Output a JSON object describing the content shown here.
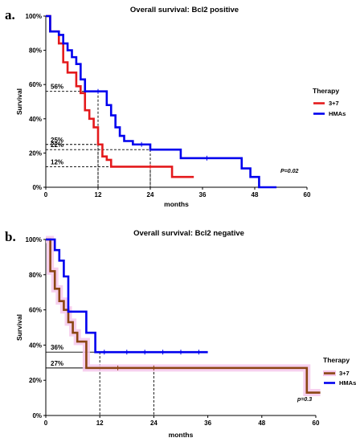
{
  "figure": {
    "panels": [
      {
        "letter": "a."
      },
      {
        "letter": "b."
      }
    ]
  },
  "chart_data": [
    {
      "type": "line",
      "title": "Overall survival: Bcl2 positive",
      "xlabel": "months",
      "ylabel": "Survival",
      "xlim": [
        0,
        60
      ],
      "ylim": [
        0,
        100
      ],
      "x_ticks": [
        "0",
        "12",
        "24",
        "36",
        "48",
        "60"
      ],
      "y_ticks": [
        "0%",
        "20%",
        "40%",
        "60%",
        "80%",
        "100%"
      ],
      "legend": {
        "title": "Therapy",
        "position": "right"
      },
      "series": [
        {
          "name": "3+7",
          "color": "#e41a1c",
          "steps": [
            [
              0,
              100
            ],
            [
              1,
              91
            ],
            [
              3,
              84
            ],
            [
              4,
              73
            ],
            [
              5,
              67
            ],
            [
              7,
              59
            ],
            [
              8,
              55
            ],
            [
              9,
              45
            ],
            [
              10,
              40
            ],
            [
              11,
              35
            ],
            [
              12,
              25
            ],
            [
              13,
              18
            ],
            [
              14,
              16
            ],
            [
              15,
              12
            ],
            [
              24,
              12
            ],
            [
              25,
              12
            ],
            [
              29,
              6
            ],
            [
              34,
              6
            ]
          ],
          "censors": [
            [
              24,
              12
            ]
          ]
        },
        {
          "name": "HMAs",
          "color": "#0000ee",
          "steps": [
            [
              0,
              100
            ],
            [
              1,
              91
            ],
            [
              3,
              89
            ],
            [
              4,
              84
            ],
            [
              5,
              80
            ],
            [
              6,
              76
            ],
            [
              7,
              72
            ],
            [
              8,
              63
            ],
            [
              9,
              56
            ],
            [
              12,
              56
            ],
            [
              14,
              48
            ],
            [
              15,
              42
            ],
            [
              16,
              35
            ],
            [
              17,
              30
            ],
            [
              18,
              27
            ],
            [
              20,
              25
            ],
            [
              24,
              22
            ],
            [
              28,
              22
            ],
            [
              31,
              17
            ],
            [
              37,
              17
            ],
            [
              45,
              11
            ],
            [
              47,
              6
            ],
            [
              49,
              0
            ],
            [
              53,
              0
            ]
          ],
          "censors": [
            [
              12,
              56
            ],
            [
              22,
              25
            ],
            [
              37,
              17
            ]
          ]
        }
      ],
      "annotations": [
        {
          "text": "56%",
          "y": 56,
          "x": 12
        },
        {
          "text": "25%",
          "y": 25,
          "x": 12
        },
        {
          "text": "22%",
          "y": 22,
          "x": 24
        },
        {
          "text": "12%",
          "y": 12,
          "x": 24
        }
      ],
      "p_value": "P=0.02",
      "grid": false
    },
    {
      "type": "line",
      "title": "Overall survival: Bcl2 negative",
      "xlabel": "months",
      "ylabel": "Survival",
      "xlim": [
        0,
        60
      ],
      "ylim": [
        0,
        100
      ],
      "x_ticks": [
        "0",
        "12",
        "24",
        "36",
        "48",
        "60"
      ],
      "y_ticks": [
        "0%",
        "20%",
        "40%",
        "60%",
        "80%",
        "100%"
      ],
      "legend": {
        "title": "Therapy",
        "position": "right"
      },
      "series": [
        {
          "name": "3+7",
          "color": "#8b4513",
          "band_color": "#f6c8ec",
          "steps": [
            [
              0,
              100
            ],
            [
              1,
              82
            ],
            [
              2,
              72
            ],
            [
              3,
              65
            ],
            [
              4,
              60
            ],
            [
              5,
              53
            ],
            [
              6,
              47
            ],
            [
              7,
              42
            ],
            [
              9,
              27
            ],
            [
              57,
              27
            ],
            [
              58,
              13
            ],
            [
              61,
              13
            ]
          ],
          "censors": [
            [
              16,
              27
            ],
            [
              24,
              27
            ]
          ]
        },
        {
          "name": "HMAs",
          "color": "#0000ee",
          "steps": [
            [
              0,
              100
            ],
            [
              2,
              94
            ],
            [
              3,
              88
            ],
            [
              4,
              79
            ],
            [
              5,
              59
            ],
            [
              8,
              59
            ],
            [
              9,
              47
            ],
            [
              11,
              36
            ],
            [
              36,
              36
            ]
          ],
          "censors": [
            [
              13,
              36
            ],
            [
              18,
              36
            ],
            [
              22,
              36
            ],
            [
              26,
              36
            ],
            [
              30,
              36
            ],
            [
              34,
              36
            ]
          ]
        }
      ],
      "annotations": [
        {
          "text": "36%",
          "y": 36,
          "x": 12
        },
        {
          "text": "27%",
          "y": 27,
          "x": 24
        }
      ],
      "p_value": "p=0.3",
      "grid": false
    }
  ]
}
